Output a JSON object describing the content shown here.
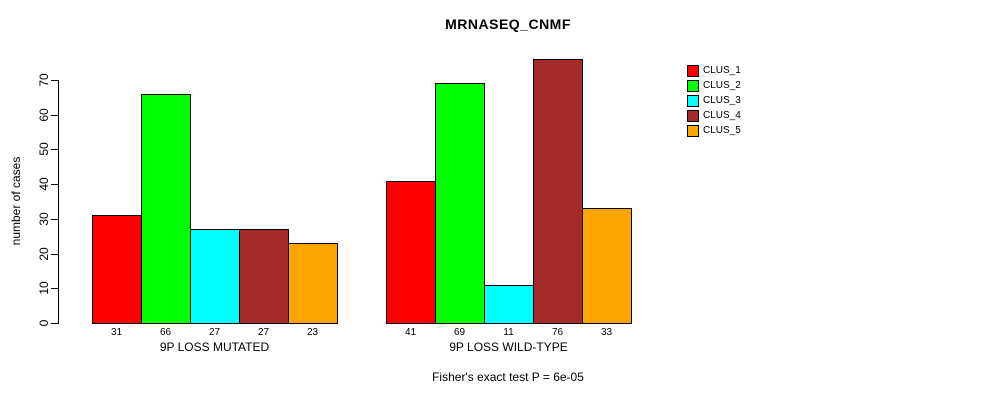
{
  "chart_data": {
    "type": "bar",
    "title": "MRNASEQ_CNMF",
    "ylabel": "number of cases",
    "xlabel": "",
    "ylim": [
      0,
      70
    ],
    "yticks": [
      0,
      10,
      20,
      30,
      40,
      50,
      60,
      70
    ],
    "grid": false,
    "legend_position": "right-outside-plot",
    "annotation": "Fisher's exact test P = 6e-05",
    "categories": [
      "9P LOSS MUTATED",
      "9P LOSS WILD-TYPE"
    ],
    "series": [
      {
        "name": "CLUS_1",
        "color": "#ff0000",
        "values": [
          31,
          41
        ]
      },
      {
        "name": "CLUS_2",
        "color": "#00ff00",
        "values": [
          66,
          69
        ]
      },
      {
        "name": "CLUS_3",
        "color": "#00ffff",
        "values": [
          27,
          11
        ]
      },
      {
        "name": "CLUS_4",
        "color": "#a52a2a",
        "values": [
          27,
          76
        ]
      },
      {
        "name": "CLUS_5",
        "color": "#ffa500",
        "values": [
          23,
          33
        ]
      }
    ],
    "groups": [
      {
        "label": "9P LOSS MUTATED",
        "values": [
          31,
          66,
          27,
          27,
          23
        ]
      },
      {
        "label": "9P LOSS WILD-TYPE",
        "values": [
          41,
          69,
          11,
          76,
          33
        ]
      }
    ],
    "bar_value_labels_shown": true
  },
  "legend": {
    "items": [
      {
        "label": "CLUS_1",
        "color": "#ff0000"
      },
      {
        "label": "CLUS_2",
        "color": "#00ff00"
      },
      {
        "label": "CLUS_3",
        "color": "#00ffff"
      },
      {
        "label": "CLUS_4",
        "color": "#a52a2a"
      },
      {
        "label": "CLUS_5",
        "color": "#ffa500"
      }
    ]
  },
  "colors": {
    "background": "#ffffff",
    "axis": "#000000",
    "text": "#000000"
  }
}
